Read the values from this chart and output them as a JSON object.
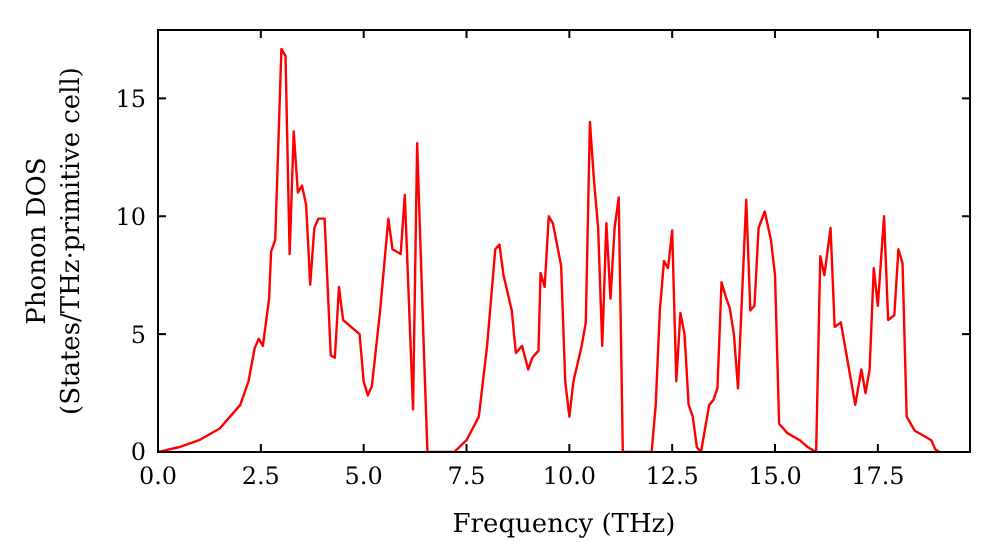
{
  "chart_data": {
    "type": "line",
    "xlabel": "Frequency (THz)",
    "ylabel": "Phonon DOS\n(States/THz·primitive cell)",
    "xlim": [
      0,
      19.74
    ],
    "ylim": [
      0,
      17.9
    ],
    "xticks": [
      {
        "value": 0,
        "label": "0.0"
      },
      {
        "value": 2.5,
        "label": "2.5"
      },
      {
        "value": 5,
        "label": "5.0"
      },
      {
        "value": 7.5,
        "label": "7.5"
      },
      {
        "value": 10,
        "label": "10.0"
      },
      {
        "value": 12.5,
        "label": "12.5"
      },
      {
        "value": 15,
        "label": "15.0"
      },
      {
        "value": 17.5,
        "label": "17.5"
      }
    ],
    "yticks": [
      0,
      5,
      10,
      15
    ],
    "grid": false,
    "line_style": "solid",
    "series": [
      {
        "color": "#ff0000",
        "x": [
          0,
          0.5,
          1.0,
          1.5,
          2.0,
          2.2,
          2.35,
          2.45,
          2.55,
          2.7,
          2.75,
          2.85,
          3.0,
          3.1,
          3.2,
          3.3,
          3.4,
          3.5,
          3.6,
          3.7,
          3.8,
          3.9,
          4.05,
          4.2,
          4.3,
          4.4,
          4.5,
          4.7,
          4.9,
          5.0,
          5.1,
          5.2,
          5.4,
          5.6,
          5.7,
          5.9,
          6.0,
          6.2,
          6.3,
          6.45,
          6.55,
          7.2,
          7.5,
          7.8,
          8.0,
          8.2,
          8.3,
          8.4,
          8.6,
          8.7,
          8.85,
          9.0,
          9.1,
          9.25,
          9.3,
          9.4,
          9.5,
          9.6,
          9.8,
          9.9,
          10.0,
          10.1,
          10.3,
          10.4,
          10.5,
          10.6,
          10.7,
          10.8,
          10.9,
          11.0,
          11.1,
          11.2,
          11.3,
          12.0,
          12.1,
          12.2,
          12.3,
          12.4,
          12.5,
          12.6,
          12.7,
          12.8,
          12.9,
          13.0,
          13.1,
          13.2,
          13.3,
          13.4,
          13.5,
          13.6,
          13.7,
          13.8,
          13.9,
          14.0,
          14.1,
          14.3,
          14.4,
          14.5,
          14.6,
          14.75,
          14.9,
          15.0,
          15.1,
          15.3,
          15.6,
          15.8,
          16.0,
          16.1,
          16.2,
          16.35,
          16.45,
          16.6,
          16.8,
          16.95,
          17.1,
          17.2,
          17.3,
          17.4,
          17.5,
          17.65,
          17.75,
          17.9,
          18.0,
          18.1,
          18.2,
          18.4,
          18.6,
          18.8,
          18.9,
          19.0
        ],
        "values": [
          0,
          0.2,
          0.5,
          1.0,
          2.0,
          3.0,
          4.4,
          4.8,
          4.5,
          6.5,
          8.5,
          9.0,
          17.1,
          16.8,
          8.4,
          13.6,
          11.0,
          11.3,
          10.5,
          7.1,
          9.5,
          9.9,
          9.9,
          4.1,
          4.0,
          7.0,
          5.6,
          5.3,
          5.0,
          3.0,
          2.4,
          2.8,
          6.0,
          9.9,
          8.6,
          8.4,
          10.9,
          1.8,
          13.1,
          5.0,
          0,
          0,
          0.5,
          1.5,
          4.5,
          8.6,
          8.8,
          7.5,
          6.0,
          4.2,
          4.5,
          3.5,
          4.0,
          4.3,
          7.6,
          7.0,
          10.0,
          9.7,
          7.9,
          3.0,
          1.5,
          3.0,
          4.5,
          5.5,
          14.0,
          11.5,
          9.5,
          4.5,
          9.7,
          6.5,
          9.5,
          10.8,
          0,
          0,
          2.0,
          6.0,
          8.1,
          7.8,
          9.4,
          3.0,
          5.9,
          5.0,
          2.0,
          1.5,
          0.2,
          0,
          1.0,
          2.0,
          2.2,
          2.7,
          7.2,
          6.6,
          6.1,
          5.0,
          2.7,
          10.7,
          6.0,
          6.2,
          9.5,
          10.2,
          9.0,
          7.5,
          1.2,
          0.8,
          0.5,
          0.2,
          0,
          8.3,
          7.5,
          9.5,
          5.3,
          5.5,
          3.5,
          2.0,
          3.5,
          2.5,
          3.5,
          7.8,
          6.2,
          10.0,
          5.6,
          5.8,
          8.6,
          8.0,
          1.5,
          0.9,
          0.7,
          0.5,
          0.1,
          0
        ]
      }
    ]
  }
}
